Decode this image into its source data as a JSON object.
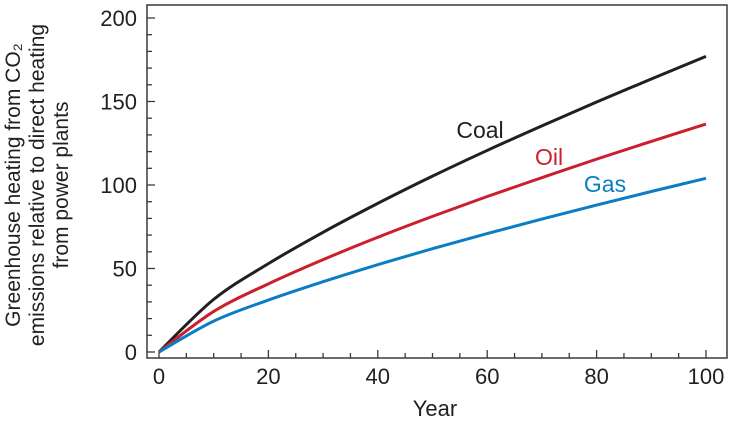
{
  "chart_data": {
    "type": "line",
    "title": "",
    "xlabel": "Year",
    "ylabel_lines": [
      "Greenhouse heating from CO₂",
      "emissions relative to direct heating",
      "from power plants"
    ],
    "xlim": [
      0,
      100
    ],
    "ylim": [
      0,
      200
    ],
    "x_ticks": [
      0,
      20,
      40,
      60,
      80,
      100
    ],
    "y_ticks": [
      0,
      50,
      100,
      150,
      200
    ],
    "grid": false,
    "x": [
      0,
      10,
      20,
      30,
      40,
      50,
      60,
      70,
      80,
      90,
      100
    ],
    "series": [
      {
        "name": "Coal",
        "color": "#231f20",
        "values": [
          0,
          31.5,
          52.9,
          71.7,
          89,
          105.3,
          120.7,
          135.4,
          149.7,
          163.5,
          177
        ]
      },
      {
        "name": "Oil",
        "color": "#cc1f2d",
        "values": [
          0,
          24.3,
          40.8,
          55.3,
          68.7,
          81.2,
          93.1,
          104.4,
          115.5,
          126.1,
          136.5
        ]
      },
      {
        "name": "Gas",
        "color": "#0b7dc2",
        "values": [
          0,
          18.5,
          31.1,
          42.1,
          52.3,
          61.9,
          70.9,
          79.6,
          88,
          96.1,
          104
        ]
      }
    ]
  }
}
